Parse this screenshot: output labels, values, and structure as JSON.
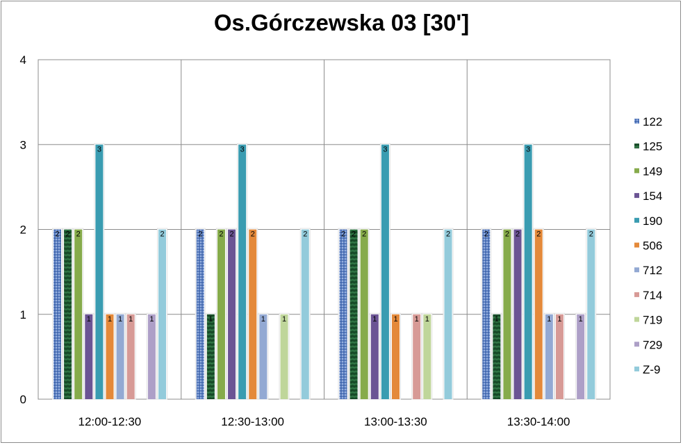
{
  "chart_data": {
    "type": "bar",
    "title": "Os.Górczewska 03 [30']",
    "xlabel": "",
    "ylabel": "",
    "ylim": [
      0,
      4
    ],
    "yticks": [
      "0",
      "1",
      "2",
      "3",
      "4"
    ],
    "grid": true,
    "legend_position": "right",
    "categories": [
      "12:00-12:30",
      "12:30-13:00",
      "13:00-13:30",
      "13:30-14:00"
    ],
    "series": [
      {
        "name": "122",
        "color": "#4f6fb0",
        "pattern": "dots",
        "values": [
          2,
          2,
          2,
          2
        ]
      },
      {
        "name": "125",
        "color": "#1e4d2b",
        "pattern": "marble",
        "values": [
          2,
          1,
          2,
          1
        ]
      },
      {
        "name": "149",
        "color": "#86ab4b",
        "values": [
          2,
          2,
          2,
          2
        ]
      },
      {
        "name": "154",
        "color": "#6b5494",
        "values": [
          1,
          2,
          1,
          2
        ]
      },
      {
        "name": "190",
        "color": "#3a9cb1",
        "values": [
          3,
          3,
          3,
          3
        ]
      },
      {
        "name": "506",
        "color": "#e4893a",
        "values": [
          1,
          2,
          1,
          2
        ]
      },
      {
        "name": "712",
        "color": "#93a9d3",
        "values": [
          1,
          1,
          0,
          1
        ]
      },
      {
        "name": "714",
        "color": "#d79a96",
        "values": [
          1,
          0,
          1,
          1
        ]
      },
      {
        "name": "719",
        "color": "#bfd69a",
        "values": [
          0,
          1,
          1,
          0
        ]
      },
      {
        "name": "729",
        "color": "#ad9fc7",
        "values": [
          1,
          0,
          0,
          1
        ]
      },
      {
        "name": "Z-9",
        "color": "#93cbdb",
        "values": [
          2,
          2,
          2,
          2
        ]
      }
    ]
  }
}
